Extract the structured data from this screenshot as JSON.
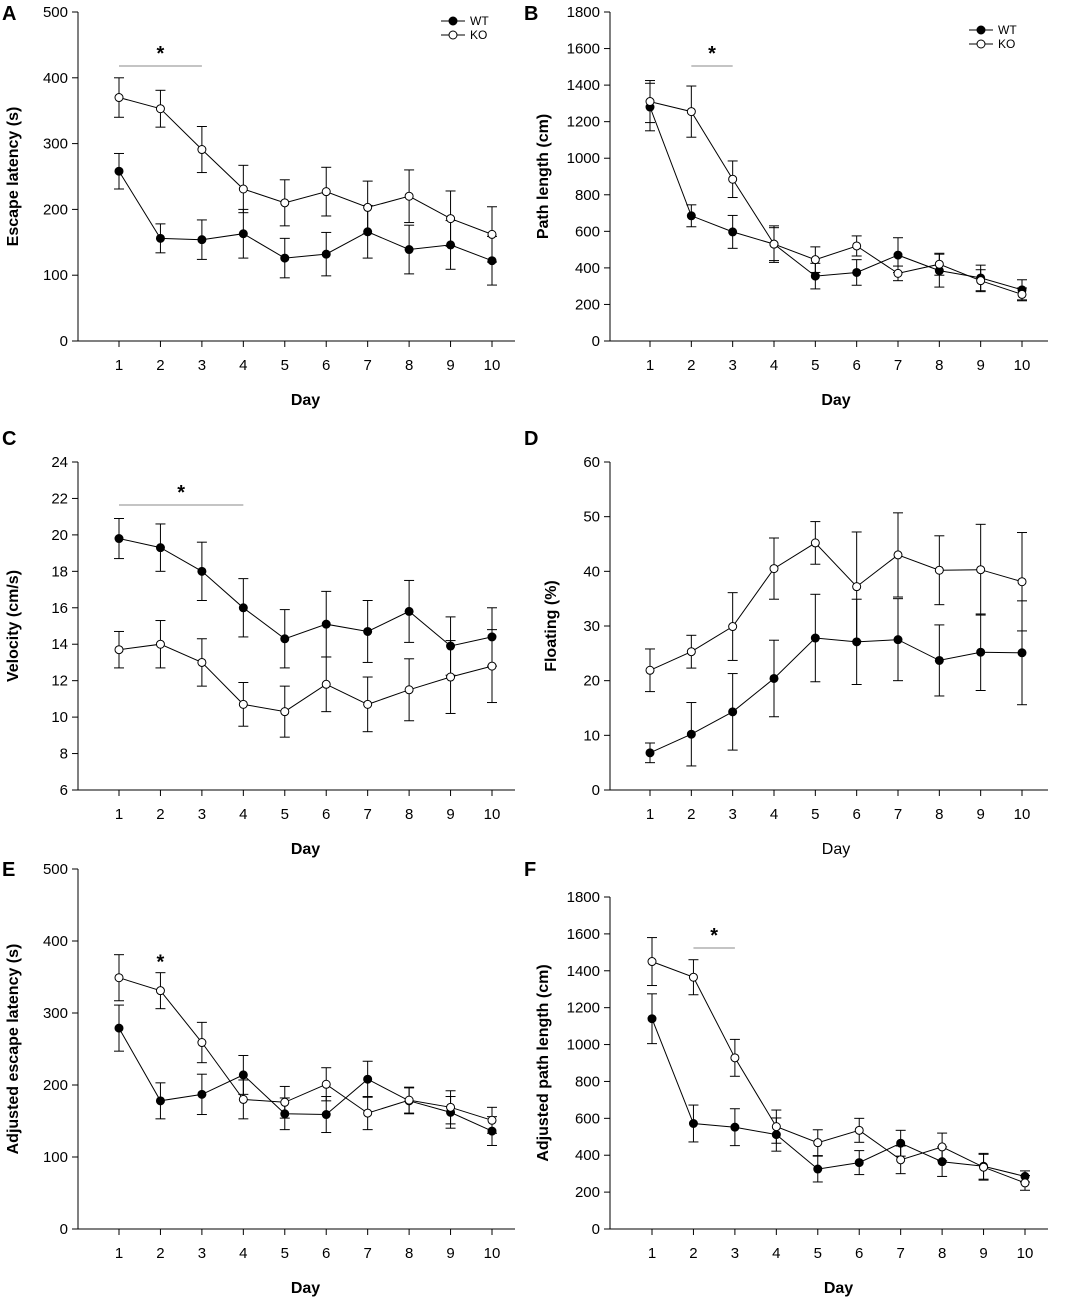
{
  "chart_data": [
    {
      "type": "line",
      "panel": "A",
      "xlabel": "Day",
      "ylabel": "Escape latency (s)",
      "ylim": [
        0,
        500
      ],
      "yticks": [
        0,
        100,
        200,
        300,
        400,
        500
      ],
      "x": [
        1,
        2,
        3,
        4,
        5,
        6,
        7,
        8,
        9,
        10
      ],
      "series": [
        {
          "name": "WT",
          "marker": "filled",
          "values": [
            258,
            156,
            154,
            163,
            126,
            132,
            166,
            139,
            146,
            122
          ],
          "errors": [
            27,
            22,
            30,
            37,
            30,
            33,
            40,
            37,
            37,
            37
          ]
        },
        {
          "name": "KO",
          "marker": "open",
          "values": [
            370,
            353,
            291,
            231,
            210,
            227,
            203,
            220,
            186,
            162
          ],
          "errors": [
            30,
            28,
            35,
            36,
            35,
            37,
            40,
            40,
            42,
            42
          ]
        }
      ],
      "legend": "top-right",
      "significance": [
        {
          "from": 1,
          "to": 3,
          "label": "*"
        }
      ]
    },
    {
      "type": "line",
      "panel": "B",
      "xlabel": "Day",
      "ylabel": "Path length (cm)",
      "ylim": [
        0,
        1800
      ],
      "yticks": [
        0,
        200,
        400,
        600,
        800,
        1000,
        1200,
        1400,
        1600,
        1800
      ],
      "x": [
        1,
        2,
        3,
        4,
        5,
        6,
        7,
        8,
        9,
        10
      ],
      "series": [
        {
          "name": "WT",
          "marker": "filled",
          "values": [
            1280,
            685,
            597,
            530,
            355,
            375,
            470,
            385,
            345,
            280
          ],
          "errors": [
            130,
            60,
            90,
            90,
            70,
            70,
            95,
            90,
            70,
            55
          ]
        },
        {
          "name": "KO",
          "marker": "open",
          "values": [
            1310,
            1255,
            885,
            530,
            445,
            520,
            370,
            420,
            330,
            255
          ],
          "errors": [
            115,
            140,
            100,
            100,
            70,
            55,
            40,
            60,
            60,
            35
          ]
        }
      ],
      "legend": "top-right",
      "significance": [
        {
          "from": 2,
          "to": 3,
          "label": "*"
        }
      ]
    },
    {
      "type": "line",
      "panel": "C",
      "xlabel": "Day",
      "ylabel": "Velocity (cm/s)",
      "ylim": [
        6,
        24
      ],
      "yticks": [
        6,
        8,
        10,
        12,
        14,
        16,
        18,
        20,
        22,
        24
      ],
      "x": [
        1,
        2,
        3,
        4,
        5,
        6,
        7,
        8,
        9,
        10
      ],
      "series": [
        {
          "name": "WT",
          "marker": "filled",
          "values": [
            19.8,
            19.3,
            18.0,
            16.0,
            14.3,
            15.1,
            14.7,
            15.8,
            13.9,
            14.4
          ],
          "errors": [
            1.1,
            1.3,
            1.6,
            1.6,
            1.6,
            1.8,
            1.7,
            1.7,
            1.6,
            1.6
          ]
        },
        {
          "name": "KO",
          "marker": "open",
          "values": [
            13.7,
            14.0,
            13.0,
            10.7,
            10.3,
            11.8,
            10.7,
            11.5,
            12.2,
            12.8
          ],
          "errors": [
            1.0,
            1.3,
            1.3,
            1.2,
            1.4,
            1.5,
            1.5,
            1.7,
            2.0,
            2.0
          ]
        }
      ],
      "significance": [
        {
          "from": 1,
          "to": 4,
          "label": "*"
        }
      ]
    },
    {
      "type": "line",
      "panel": "D",
      "xlabel": "Day",
      "ylabel": "Floating (%)",
      "ylim": [
        0,
        60
      ],
      "yticks": [
        0,
        10,
        20,
        30,
        40,
        50,
        60
      ],
      "x": [
        1,
        2,
        3,
        4,
        5,
        6,
        7,
        8,
        9,
        10
      ],
      "series": [
        {
          "name": "WT",
          "marker": "filled",
          "values": [
            6.8,
            10.2,
            14.3,
            20.4,
            27.8,
            27.1,
            27.5,
            23.7,
            25.2,
            25.1
          ],
          "errors": [
            1.8,
            5.8,
            7.0,
            7.0,
            8.0,
            7.8,
            7.5,
            6.5,
            7.0,
            9.5
          ]
        },
        {
          "name": "KO",
          "marker": "open",
          "values": [
            21.9,
            25.3,
            29.9,
            40.5,
            45.2,
            37.2,
            43.0,
            40.2,
            40.3,
            38.1
          ],
          "errors": [
            3.9,
            3.0,
            6.2,
            5.6,
            3.9,
            10.0,
            7.7,
            6.3,
            8.3,
            9.0
          ]
        }
      ]
    },
    {
      "type": "line",
      "panel": "E",
      "xlabel": "Day",
      "ylabel": "Adjusted escape latency (s)",
      "ylim": [
        0,
        500
      ],
      "yticks": [
        0,
        100,
        200,
        300,
        400,
        500
      ],
      "x": [
        1,
        2,
        3,
        4,
        5,
        6,
        7,
        8,
        9,
        10
      ],
      "series": [
        {
          "name": "WT",
          "marker": "filled",
          "values": [
            279,
            178,
            187,
            214,
            160,
            159,
            208,
            178,
            162,
            136
          ],
          "errors": [
            32,
            25,
            28,
            27,
            22,
            25,
            25,
            18,
            22,
            20
          ]
        },
        {
          "name": "KO",
          "marker": "open",
          "values": [
            349,
            331,
            259,
            180,
            176,
            201,
            161,
            179,
            169,
            151
          ],
          "errors": [
            32,
            25,
            28,
            27,
            22,
            23,
            23,
            18,
            23,
            18
          ]
        }
      ],
      "significance": [
        {
          "from": 2,
          "to": 2,
          "label": "*"
        }
      ]
    },
    {
      "type": "line",
      "panel": "F",
      "xlabel": "Day",
      "ylabel": "Adjusted path length (cm)",
      "ylim": [
        0,
        1800
      ],
      "yticks": [
        0,
        200,
        400,
        600,
        800,
        1000,
        1200,
        1400,
        1600,
        1800
      ],
      "x": [
        1,
        2,
        3,
        4,
        5,
        6,
        7,
        8,
        9,
        10
      ],
      "series": [
        {
          "name": "WT",
          "marker": "filled",
          "values": [
            1140,
            572,
            552,
            512,
            325,
            360,
            465,
            365,
            340,
            285
          ],
          "errors": [
            135,
            100,
            100,
            90,
            70,
            65,
            70,
            80,
            70,
            30
          ]
        },
        {
          "name": "KO",
          "marker": "open",
          "values": [
            1450,
            1365,
            928,
            555,
            468,
            535,
            375,
            445,
            335,
            250
          ],
          "errors": [
            130,
            95,
            100,
            90,
            70,
            65,
            75,
            75,
            70,
            40
          ]
        }
      ],
      "significance": [
        {
          "from": 2,
          "to": 3,
          "label": "*"
        }
      ]
    }
  ]
}
